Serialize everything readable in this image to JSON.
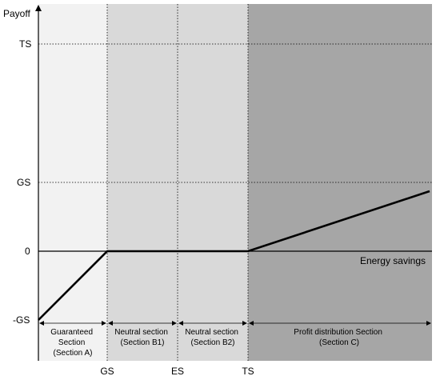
{
  "y_axis": {
    "title": "Payoff",
    "ticks": [
      {
        "key": "ts",
        "label": "TS"
      },
      {
        "key": "gs",
        "label": "GS"
      },
      {
        "key": "zero",
        "label": "0"
      },
      {
        "key": "neg_gs",
        "label": "-GS"
      }
    ]
  },
  "x_axis": {
    "title": "Energy savings",
    "ticks": [
      {
        "key": "gs",
        "label": "GS"
      },
      {
        "key": "es",
        "label": "ES"
      },
      {
        "key": "ts",
        "label": "TS"
      }
    ]
  },
  "sections": [
    {
      "key": "a",
      "lines": [
        "Guaranteed",
        "Section",
        "(Section A)"
      ],
      "color": "#f2f2f2"
    },
    {
      "key": "b1",
      "lines": [
        "Neutral section",
        "(Section B1)"
      ],
      "color": "#d9d9d9"
    },
    {
      "key": "b2",
      "lines": [
        "Neutral section",
        "(Section B2)"
      ],
      "color": "#d9d9d9"
    },
    {
      "key": "c",
      "lines": [
        "Profit distribution Section",
        "(Section C)"
      ],
      "color": "#a6a6a6"
    }
  ],
  "colors": {
    "payoff_line": "#000000",
    "axis": "#000000",
    "guide_lines": "#000000"
  }
}
